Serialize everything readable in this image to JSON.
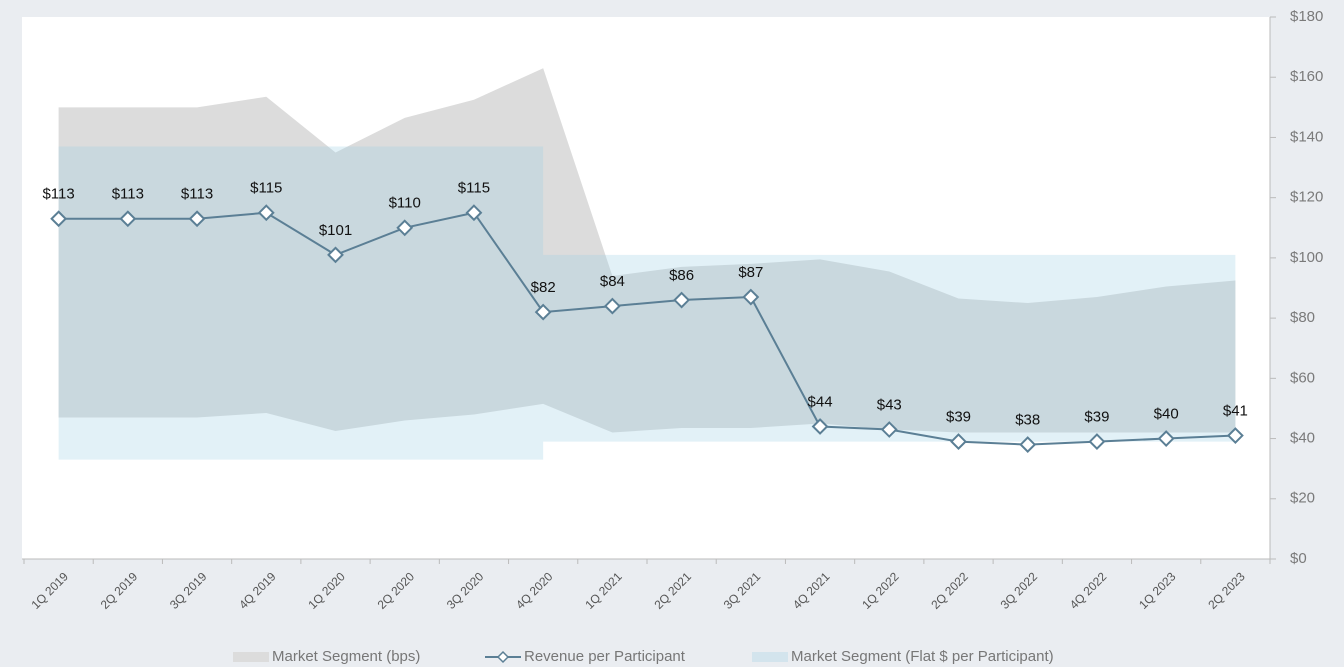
{
  "chart_data": {
    "type": "line",
    "categories": [
      "1Q 2019",
      "2Q 2019",
      "3Q 2019",
      "4Q 2019",
      "1Q 2020",
      "2Q 2020",
      "3Q 2020",
      "4Q 2020",
      "1Q 2021",
      "2Q 2021",
      "3Q 2021",
      "4Q 2021",
      "1Q 2022",
      "2Q 2022",
      "3Q 2022",
      "4Q 2022",
      "1Q 2023",
      "2Q 2023"
    ],
    "ranges": [
      {
        "name": "Market Segment (bps)",
        "color": "#dcdcdc",
        "step": false,
        "upper": [
          150,
          150,
          150,
          153.5,
          135,
          146.5,
          152.5,
          163,
          94,
          97,
          98,
          99.5,
          95.5,
          86.5,
          85,
          87,
          90.5,
          92.5
        ],
        "lower": [
          47,
          47,
          47,
          48.5,
          42.5,
          46,
          48,
          51.5,
          42,
          43.5,
          43.5,
          45,
          43,
          42,
          42,
          42,
          42,
          42
        ]
      },
      {
        "name": "Market Segment (Flat $ per Participant)",
        "color": "#a0d2e4",
        "step": true,
        "upper": [
          137,
          137,
          137,
          137,
          137,
          137,
          137,
          101,
          101,
          101,
          101,
          101,
          101,
          101,
          101,
          101,
          101,
          101
        ],
        "lower": [
          33,
          33,
          33,
          33,
          33,
          33,
          33,
          39,
          39,
          39,
          39,
          39,
          39,
          39,
          39,
          39,
          39,
          39
        ]
      }
    ],
    "series": [
      {
        "name": "Revenue per Participant",
        "color": "#5b7f95",
        "values": [
          113,
          113,
          113,
          115,
          101,
          110,
          115,
          82,
          84,
          86,
          87,
          44,
          43,
          39,
          38,
          39,
          40,
          41
        ],
        "value_labels": [
          "$113",
          "$113",
          "$113",
          "$115",
          "$101",
          "$110",
          "$115",
          "$82",
          "$84",
          "$86",
          "$87",
          "$44",
          "$43",
          "$39",
          "$38",
          "$39",
          "$40",
          "$41"
        ]
      }
    ],
    "ylim": [
      0,
      180
    ],
    "yticks": [
      {
        "value": 0,
        "label": "$0"
      },
      {
        "value": 20,
        "label": "$20"
      },
      {
        "value": 40,
        "label": "$40"
      },
      {
        "value": 60,
        "label": "$60"
      },
      {
        "value": 80,
        "label": "$80"
      },
      {
        "value": 100,
        "label": "$100"
      },
      {
        "value": 120,
        "label": "$120"
      },
      {
        "value": 140,
        "label": "$140"
      },
      {
        "value": 160,
        "label": "$160"
      },
      {
        "value": 180,
        "label": "$180"
      }
    ],
    "legend": "bottom"
  }
}
